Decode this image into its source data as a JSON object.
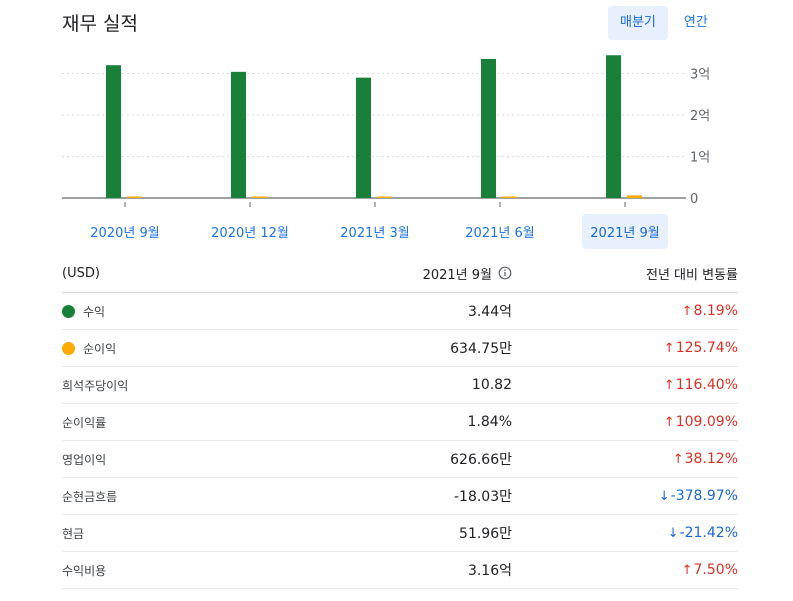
{
  "header": {
    "title": "재무 실적",
    "toggle": [
      {
        "label": "매분기",
        "active": true
      },
      {
        "label": "연간",
        "active": false
      }
    ]
  },
  "chart_data": {
    "type": "bar",
    "categories": [
      "2020년 9월",
      "2020년 12월",
      "2021년 3월",
      "2021년 6월",
      "2021년 9월"
    ],
    "selected_category": "2021년 9월",
    "series": [
      {
        "name": "수익",
        "color": "#188038",
        "values": [
          3.2,
          3.04,
          2.9,
          3.35,
          3.44
        ]
      },
      {
        "name": "순이익",
        "color": "#f9ab00",
        "values": [
          0.028,
          0.031,
          0.026,
          0.036,
          0.0635
        ]
      }
    ],
    "y_unit": "억",
    "ylim": [
      0,
      3.3
    ],
    "y_ticks": [
      "3억",
      "2억",
      "1억",
      "0"
    ],
    "y_tick_values": [
      3,
      2,
      1,
      0
    ],
    "grid": true,
    "axis_side": "right"
  },
  "table": {
    "headers": {
      "metric": "(USD)",
      "period": "2021년 9월",
      "change": "전년 대비 변동률"
    },
    "rows": [
      {
        "label": "수익",
        "dot": "#188038",
        "value": "3.44억",
        "change": "8.19%",
        "dir": "up"
      },
      {
        "label": "순이익",
        "dot": "#f9ab00",
        "value": "634.75만",
        "change": "125.74%",
        "dir": "up"
      },
      {
        "label": "희석주당이익",
        "value": "10.82",
        "change": "116.40%",
        "dir": "up"
      },
      {
        "label": "순이익률",
        "value": "1.84%",
        "change": "109.09%",
        "dir": "up"
      },
      {
        "label": "영업이익",
        "value": "626.66만",
        "change": "38.12%",
        "dir": "up"
      },
      {
        "label": "순현금흐름",
        "value": "-18.03만",
        "change": "-378.97%",
        "dir": "down"
      },
      {
        "label": "현금",
        "value": "51.96만",
        "change": "-21.42%",
        "dir": "down"
      },
      {
        "label": "수익비용",
        "value": "3.16억",
        "change": "7.50%",
        "dir": "up"
      }
    ]
  }
}
